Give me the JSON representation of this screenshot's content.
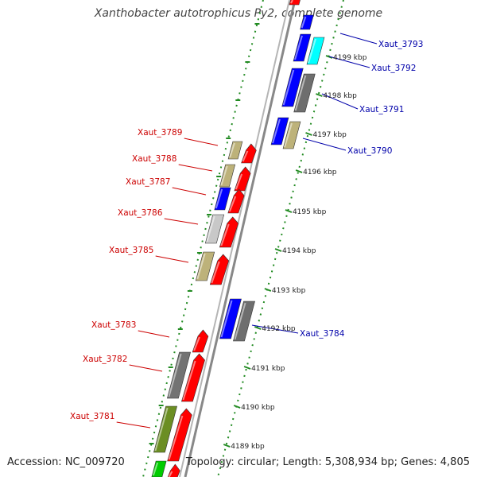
{
  "title": "Xanthobacter autotrophicus Py2, complete genome",
  "footer": {
    "accession": "Accession: NC_009720",
    "summary": "Topology: circular; Length: 5,308,934 bp; Genes: 4,805"
  },
  "ticks": [
    "4189 kbp",
    "4190 kbp",
    "4191 kbp",
    "4192 kbp",
    "4193 kbp",
    "4194 kbp",
    "4195 kbp",
    "4196 kbp",
    "4197 kbp",
    "4198 kbp",
    "4199 kbp"
  ],
  "colors": {
    "forward_label": "#cc0000",
    "reverse_label": "#0000aa",
    "backbone": "#888888",
    "tick_track": "#228b22"
  },
  "labels": {
    "forward": [
      "Xaut_3789",
      "Xaut_3788",
      "Xaut_3787",
      "Xaut_3786",
      "Xaut_3785",
      "Xaut_3783",
      "Xaut_3782",
      "Xaut_3781"
    ],
    "reverse": [
      "Xaut_3793",
      "Xaut_3792",
      "Xaut_3791",
      "Xaut_3790",
      "Xaut_3784"
    ]
  }
}
